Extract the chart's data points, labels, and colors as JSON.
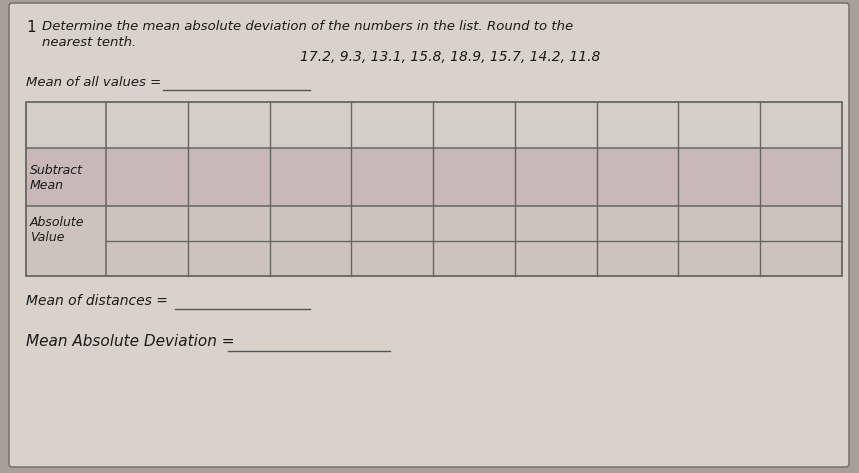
{
  "problem_number": "1",
  "instruction_line1": "Determine the mean absolute deviation of the numbers in the list. Round to the",
  "instruction_line2": "nearest tenth.",
  "data_list": "17.2, 9.3, 13.1, 15.8, 18.9, 15.7, 14.2, 11.8",
  "label_mean_all": "Mean of all values =",
  "label_mean_dist": "Mean of distances =",
  "label_mad": "Mean Absolute Deviation =",
  "row2_label_line1": "Subtract",
  "row2_label_line2": "Mean",
  "row3_label_line1": "Absolute",
  "row3_label_line2": "Value",
  "num_data_cols": 9,
  "outer_bg": "#a8a098",
  "card_bg": "#d8d2ca",
  "table_row1_color": "#d4cec8",
  "table_row2_color": "#c8b8b8",
  "table_row3_color": "#ccc4bc",
  "border_color": "#666660",
  "text_color": "#1a1a1a"
}
